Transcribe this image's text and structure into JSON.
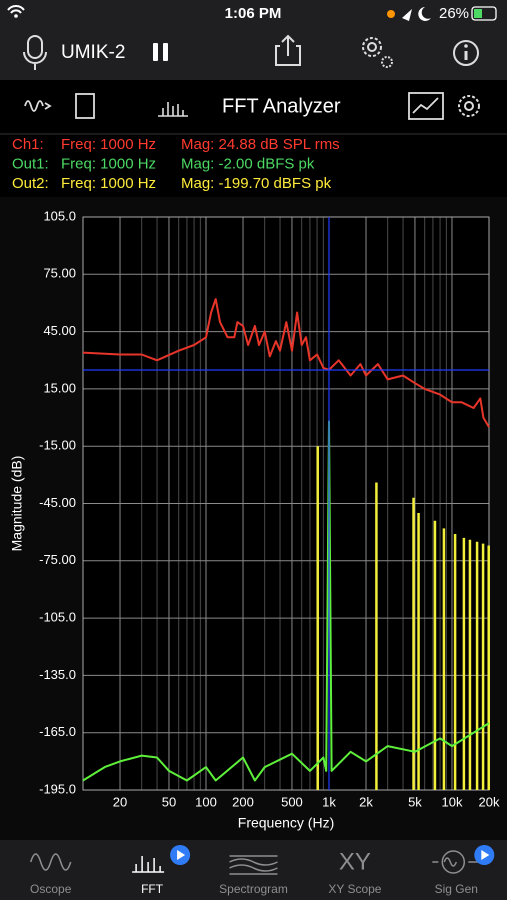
{
  "status_bar": {
    "time": "1:06 PM",
    "battery": "26%"
  },
  "toolbar": {
    "device": "UMIK-2"
  },
  "subtoolbar": {
    "title": "FFT Analyzer"
  },
  "readouts": [
    {
      "channel": "Ch1:",
      "freq": "Freq: 1000 Hz",
      "mag": "Mag: 24.88 dB SPL rms",
      "color": "#ff3b30"
    },
    {
      "channel": "Out1:",
      "freq": "Freq: 1000 Hz",
      "mag": "Mag: -2.00 dBFS pk",
      "color": "#4cd964"
    },
    {
      "channel": "Out2:",
      "freq": "Freq: 1000 Hz",
      "mag": "Mag: -199.70 dBFS pk",
      "color": "#ffeb3b"
    }
  ],
  "chart_data": {
    "type": "line",
    "x_label": "Frequency (Hz)",
    "y_label": "Magnitude (dB)",
    "xscale": "log",
    "xlim": [
      10,
      20000
    ],
    "ylim": [
      -195,
      105
    ],
    "xticks": [
      20,
      50,
      100,
      200,
      500,
      {
        "value": 1000,
        "label": "1k"
      },
      {
        "value": 2000,
        "label": "2k"
      },
      {
        "value": 5000,
        "label": "5k"
      },
      {
        "value": 10000,
        "label": "10k"
      },
      {
        "value": 20000,
        "label": "20k"
      }
    ],
    "xminor": [
      30,
      40,
      60,
      70,
      80,
      90,
      300,
      400,
      600,
      700,
      800,
      900,
      3000,
      4000,
      6000,
      7000,
      8000,
      9000
    ],
    "yticks": [
      {
        "value": 105,
        "label": "105.0"
      },
      {
        "value": 75,
        "label": "75.00"
      },
      {
        "value": 45,
        "label": "45.00"
      },
      {
        "value": 15,
        "label": "15.00"
      },
      {
        "value": -15,
        "label": "-15.00"
      },
      {
        "value": -45,
        "label": "-45.00"
      },
      {
        "value": -75,
        "label": "-75.00"
      },
      {
        "value": -105,
        "label": "-105.0"
      },
      {
        "value": -135,
        "label": "-135.0"
      },
      {
        "value": -165,
        "label": "-165.0"
      },
      {
        "value": -195,
        "label": "-195.0"
      }
    ],
    "grid": true,
    "cursor": {
      "x": 1000,
      "y": 24.88,
      "color": "#1f3cff"
    },
    "series": [
      {
        "name": "Ch1",
        "color": "#e8352a",
        "style": "line",
        "x": [
          10,
          20,
          30,
          40,
          60,
          80,
          100,
          110,
          120,
          130,
          150,
          170,
          180,
          200,
          220,
          250,
          270,
          300,
          330,
          370,
          400,
          450,
          500,
          550,
          600,
          650,
          700,
          800,
          900,
          1000,
          1200,
          1500,
          1800,
          2000,
          2500,
          3000,
          4000,
          5000,
          6000,
          8000,
          10000,
          12000,
          15000,
          17000,
          18000,
          20000
        ],
        "values": [
          34,
          33,
          33,
          30,
          35,
          38,
          42,
          55,
          62,
          50,
          42,
          42,
          50,
          48,
          38,
          48,
          38,
          45,
          32,
          40,
          35,
          50,
          35,
          55,
          38,
          42,
          30,
          33,
          26,
          25,
          30,
          22,
          28,
          22,
          28,
          20,
          22,
          18,
          15,
          12,
          8,
          8,
          5,
          10,
          0,
          -5
        ]
      },
      {
        "name": "Out1",
        "color": "#5ef03a",
        "style": "line",
        "x": [
          10,
          15,
          20,
          30,
          40,
          50,
          70,
          100,
          120,
          200,
          250,
          300,
          500,
          700,
          900,
          950,
          1000,
          1050,
          1500,
          2000,
          3000,
          5000,
          8000,
          10000,
          15000,
          20000
        ],
        "values": [
          -190,
          -183,
          -180,
          -177,
          -178,
          -185,
          -190,
          -183,
          -190,
          -178,
          -190,
          -183,
          -176,
          -185,
          -178,
          -185,
          -2,
          -185,
          -175,
          -180,
          -172,
          -175,
          -168,
          -172,
          -165,
          -160
        ]
      },
      {
        "name": "Out2",
        "color": "#f2ef3a",
        "style": "stem",
        "x": [
          810,
          2430,
          4870,
          5350,
          7270,
          8600,
          10600,
          12500,
          14000,
          16000,
          17900,
          19900
        ],
        "values": [
          -15,
          -34,
          -42,
          -50,
          -54,
          -58,
          -61,
          -63,
          -64,
          -65,
          -66,
          -67
        ]
      }
    ]
  },
  "tabs": [
    {
      "label": "Oscope"
    },
    {
      "label": "FFT"
    },
    {
      "label": "Spectrogram"
    },
    {
      "label": "XY Scope",
      "icon": "XY"
    },
    {
      "label": "Sig Gen"
    }
  ]
}
